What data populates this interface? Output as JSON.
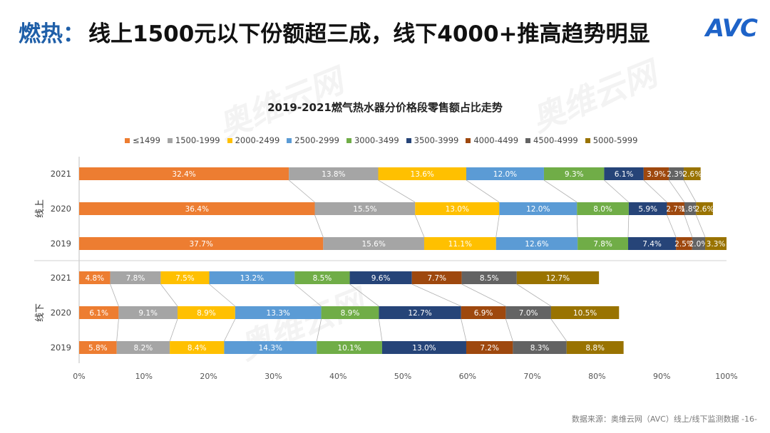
{
  "header": {
    "title_key": "燃热：",
    "title_rest": "线上1500元以下份额超三成，线下4000+推高趋势明显",
    "logo": "AVC"
  },
  "watermarks": [
    "奥维云网",
    "奥维云网",
    "奥维云网"
  ],
  "footer": {
    "source": "数据来源：奥维云网（AVC）线上/线下监测数据 -16-"
  },
  "colors": {
    "series": [
      "#ed7d31",
      "#a5a5a5",
      "#ffc000",
      "#5b9bd5",
      "#70ad47",
      "#264478",
      "#9e480e",
      "#636363",
      "#997300"
    ]
  },
  "chart_data": {
    "type": "bar",
    "orientation": "horizontal-stacked-100",
    "title": "2019-2021燃气热水器分价格段零售额占比走势",
    "series_names": [
      "≤1499",
      "1500-1999",
      "2000-2499",
      "2500-2999",
      "3000-3499",
      "3500-3999",
      "4000-4499",
      "4500-4999",
      "5000-5999"
    ],
    "groups": [
      {
        "name": "线上",
        "rows": [
          {
            "year": "2021",
            "values": [
              32.4,
              13.8,
              13.6,
              12.0,
              9.3,
              6.1,
              3.9,
              2.3,
              2.6
            ]
          },
          {
            "year": "2020",
            "values": [
              36.4,
              15.5,
              13.0,
              12.0,
              8.0,
              5.9,
              2.7,
              1.8,
              2.6
            ]
          },
          {
            "year": "2019",
            "values": [
              37.7,
              15.6,
              11.1,
              12.6,
              7.8,
              7.4,
              2.5,
              2.0,
              3.3
            ]
          }
        ]
      },
      {
        "name": "线下",
        "rows": [
          {
            "year": "2021",
            "values": [
              4.8,
              7.8,
              7.5,
              13.2,
              8.5,
              9.6,
              7.7,
              8.5,
              12.7
            ]
          },
          {
            "year": "2020",
            "values": [
              6.1,
              9.1,
              8.9,
              13.3,
              8.9,
              12.7,
              6.9,
              7.0,
              10.5
            ]
          },
          {
            "year": "2019",
            "values": [
              5.8,
              8.2,
              8.4,
              14.3,
              10.1,
              13.0,
              7.2,
              8.3,
              8.8
            ]
          }
        ]
      }
    ],
    "xlim": [
      0,
      100
    ],
    "xticks": [
      "0%",
      "10%",
      "20%",
      "30%",
      "40%",
      "50%",
      "60%",
      "70%",
      "80%",
      "90%",
      "100%"
    ]
  }
}
